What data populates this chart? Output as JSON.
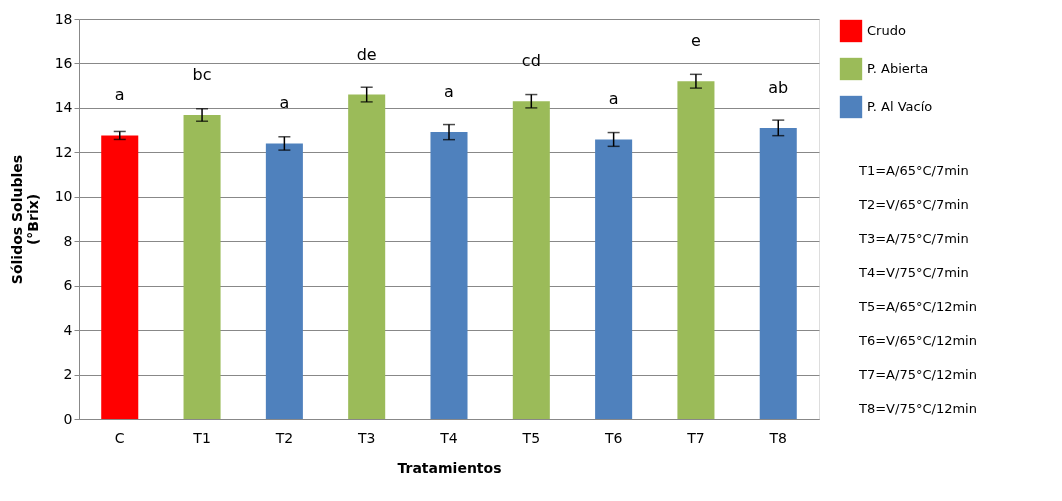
{
  "chart_data": {
    "type": "bar",
    "xlabel": "Tratamientos",
    "ylabel": "Sólidos Solubles (°Brix)",
    "categories": [
      "C",
      "T1",
      "T2",
      "T3",
      "T4",
      "T5",
      "T6",
      "T7",
      "T8"
    ],
    "series": [
      {
        "name": "Crudo",
        "color": "#ff0000",
        "values": [
          12.76,
          null,
          null,
          null,
          null,
          null,
          null,
          null,
          null
        ],
        "errors": [
          0.18,
          null,
          null,
          null,
          null,
          null,
          null,
          null,
          null
        ]
      },
      {
        "name": "P. Abierta",
        "color": "#9bbb59",
        "values": [
          null,
          13.68,
          null,
          14.6,
          null,
          14.3,
          null,
          15.2,
          null
        ],
        "errors": [
          null,
          0.28,
          null,
          0.33,
          null,
          0.3,
          null,
          0.31,
          null
        ]
      },
      {
        "name": "P. Al Vacío",
        "color": "#4f81bd",
        "values": [
          null,
          null,
          12.4,
          null,
          12.91,
          null,
          12.58,
          null,
          13.1
        ],
        "errors": [
          null,
          null,
          0.3,
          null,
          0.34,
          null,
          0.31,
          null,
          0.35
        ]
      }
    ],
    "ylim": [
      0,
      18
    ],
    "yticks": [
      0,
      2,
      4,
      6,
      8,
      10,
      12,
      14,
      16,
      18
    ],
    "grid": "y",
    "legend": "top right",
    "annotations": [
      {
        "text": "a",
        "x": "C",
        "y": 12.76
      },
      {
        "text": "bc",
        "x": "T1",
        "y": 13.68
      },
      {
        "text": "a",
        "x": "T2",
        "y": 12.4
      },
      {
        "text": "de",
        "x": "T3",
        "y": 14.6
      },
      {
        "text": "a",
        "x": "T4",
        "y": 12.91
      },
      {
        "text": "cd",
        "x": "T5",
        "y": 14.3
      },
      {
        "text": "a",
        "x": "T6",
        "y": 12.58
      },
      {
        "text": "e",
        "x": "T7",
        "y": 15.2
      },
      {
        "text": "ab",
        "x": "T8",
        "y": 13.1
      },
      "T1=A/65°C/7min",
      "T2=V/65°C/7min",
      "T3=A/75°C/7min",
      "T4=V/75°C/7min",
      "T5=A/65°C/12min",
      "T6=V/65°C/12min",
      "T7=A/75°C/12min",
      "T8=V/75°C/12min"
    ]
  }
}
